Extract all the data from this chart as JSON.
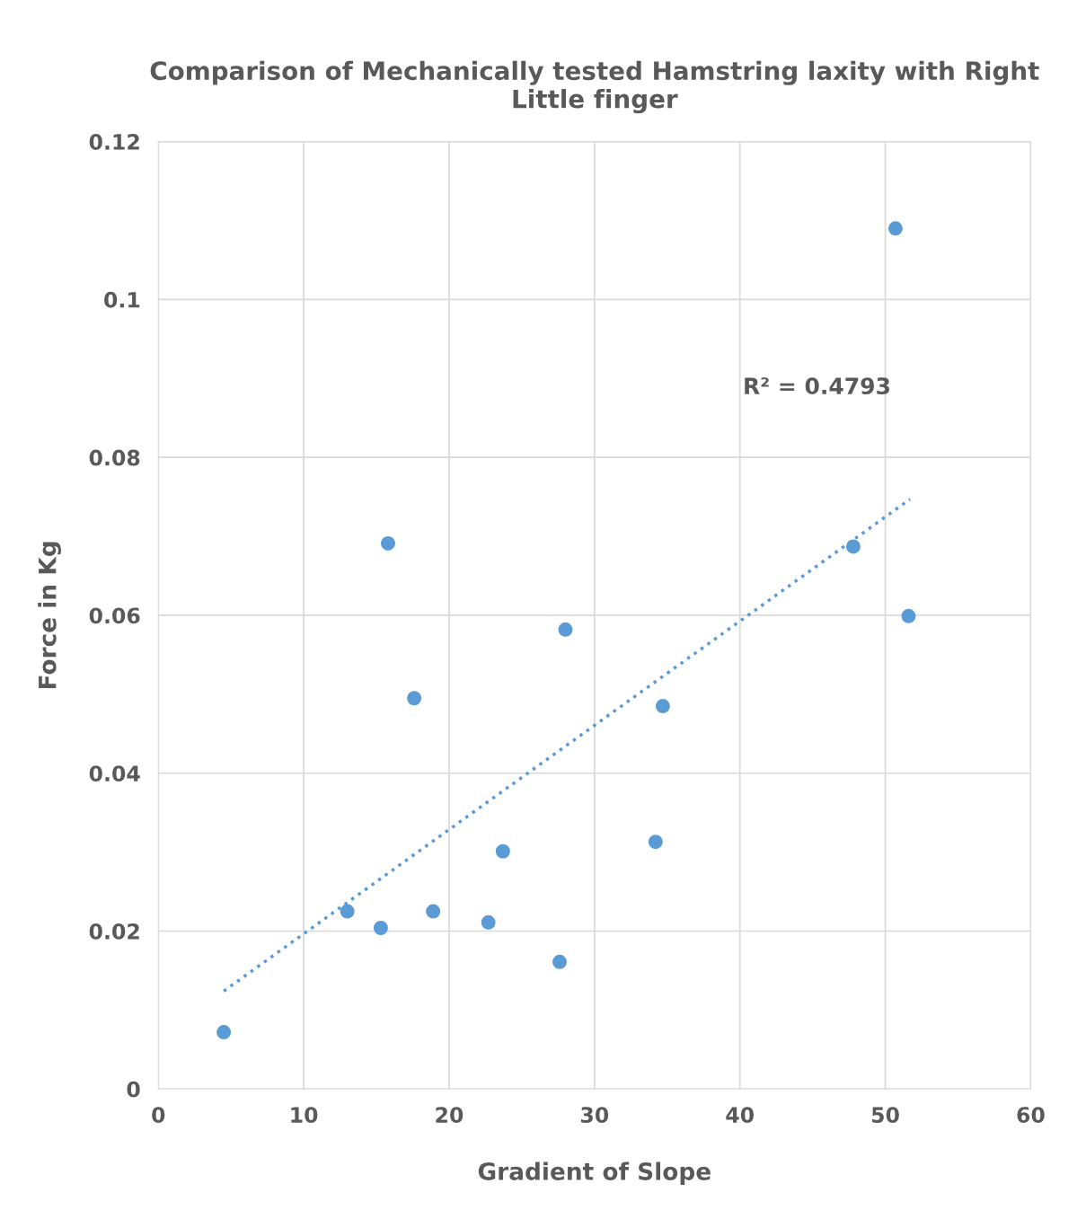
{
  "chart_data": {
    "type": "scatter",
    "title": "Comparison of Mechanically tested Hamstring laxity with Right Little finger",
    "xlabel": "Gradient of Slope",
    "ylabel": "Force in Kg",
    "series": [
      {
        "color": "#5b9bd5",
        "marker": "circle",
        "x": [
          4.5,
          13.0,
          15.3,
          15.8,
          17.6,
          18.9,
          22.7,
          23.7,
          27.6,
          28.0,
          34.2,
          34.7,
          47.8,
          50.7,
          51.6
        ],
        "values": [
          0.0072,
          0.0225,
          0.0204,
          0.0691,
          0.0495,
          0.0225,
          0.0211,
          0.0301,
          0.0161,
          0.0582,
          0.0313,
          0.0485,
          0.0687,
          0.109,
          0.0599
        ]
      },
      {
        "type": "line",
        "color": "#5b9bd5",
        "line_style": "dotted",
        "x": [
          4.5,
          51.7
        ],
        "values": [
          0.0124,
          0.0747
        ]
      }
    ],
    "annotations": [
      "R² = 0.4793"
    ],
    "xlim": [
      0,
      60
    ],
    "xticks": [
      0,
      10,
      20,
      30,
      40,
      50,
      60
    ],
    "ylim": [
      0,
      0.12
    ],
    "yticks": [
      0,
      {
        "value": 0.02,
        "label": "0.02"
      },
      {
        "value": 0.04,
        "label": "0.04"
      },
      {
        "value": 0.06,
        "label": "0.06"
      },
      {
        "value": 0.08,
        "label": "0.08"
      },
      {
        "value": 0.1,
        "label": "0.1"
      },
      {
        "value": 0.12,
        "label": "0.12"
      }
    ],
    "grid": true,
    "legend": false
  }
}
